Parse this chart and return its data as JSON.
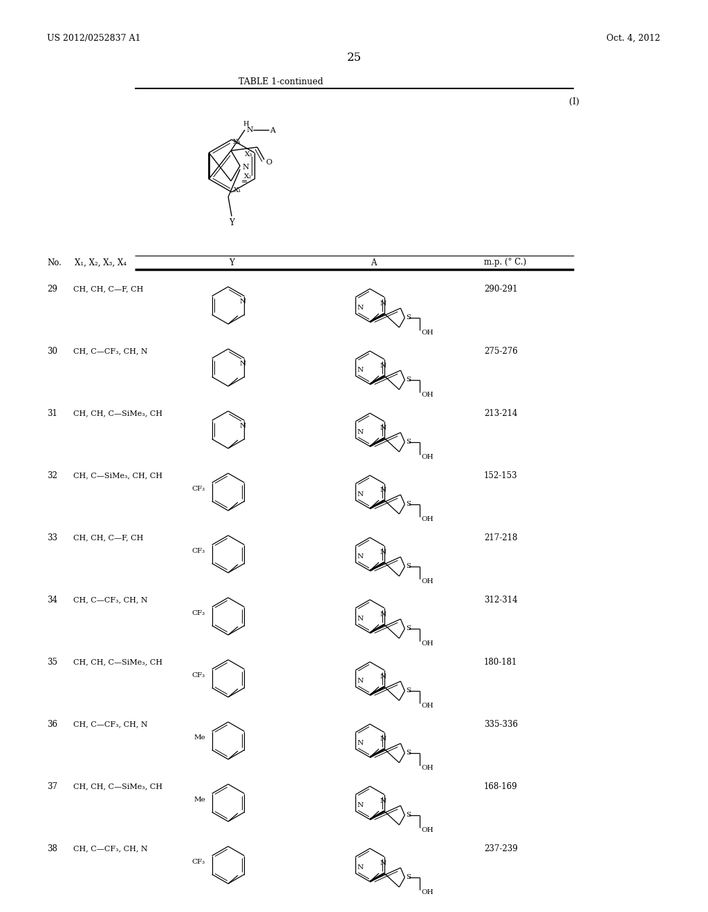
{
  "header_left": "US 2012/0252837 A1",
  "header_right": "Oct. 4, 2012",
  "page_number": "25",
  "table_title": "TABLE 1-continued",
  "formula_label": "(I)",
  "bg_color": "#ffffff",
  "col_headers": [
    "No.",
    "X₁, X₂, X₃, X₄",
    "Y",
    "A",
    "m.p. (° C.)"
  ],
  "rows": [
    {
      "no": "29",
      "x": "CH, CH, C—F, CH",
      "y_sub": null,
      "mol_type": "pyridine_methyl",
      "mp": "290-291"
    },
    {
      "no": "30",
      "x": "CH, C—CF₃, CH, N",
      "y_sub": null,
      "mol_type": "pyridine_methyl",
      "mp": "275-276"
    },
    {
      "no": "31",
      "x": "CH, CH, C—SiMe₃, CH",
      "y_sub": null,
      "mol_type": "pyridine_methyl",
      "mp": "213-214"
    },
    {
      "no": "32",
      "x": "CH, C—SiMe₃, CH, CH",
      "y_sub": "CF₃",
      "mol_type": "toluene_3",
      "mp": "152-153"
    },
    {
      "no": "33",
      "x": "CH, CH, C—F, CH",
      "y_sub": "CF₃",
      "mol_type": "toluene_3",
      "mp": "217-218"
    },
    {
      "no": "34",
      "x": "CH, C—CF₃, CH, N",
      "y_sub": "CF₃",
      "mol_type": "toluene_3",
      "mp": "312-314"
    },
    {
      "no": "35",
      "x": "CH, CH, C—SiMe₃, CH",
      "y_sub": "CF₃",
      "mol_type": "toluene_3",
      "mp": "180-181"
    },
    {
      "no": "36",
      "x": "CH, C—CF₃, CH, N",
      "y_sub": "Me",
      "mol_type": "toluene_3",
      "mp": "335-336"
    },
    {
      "no": "37",
      "x": "CH, CH, C—SiMe₃, CH",
      "y_sub": "Me",
      "mol_type": "toluene_3",
      "mp": "168-169"
    },
    {
      "no": "38",
      "x": "CH, C—CF₃, CH, N",
      "y_sub": "CF₃",
      "mol_type": "toluene_3",
      "mp": "237-239"
    }
  ]
}
